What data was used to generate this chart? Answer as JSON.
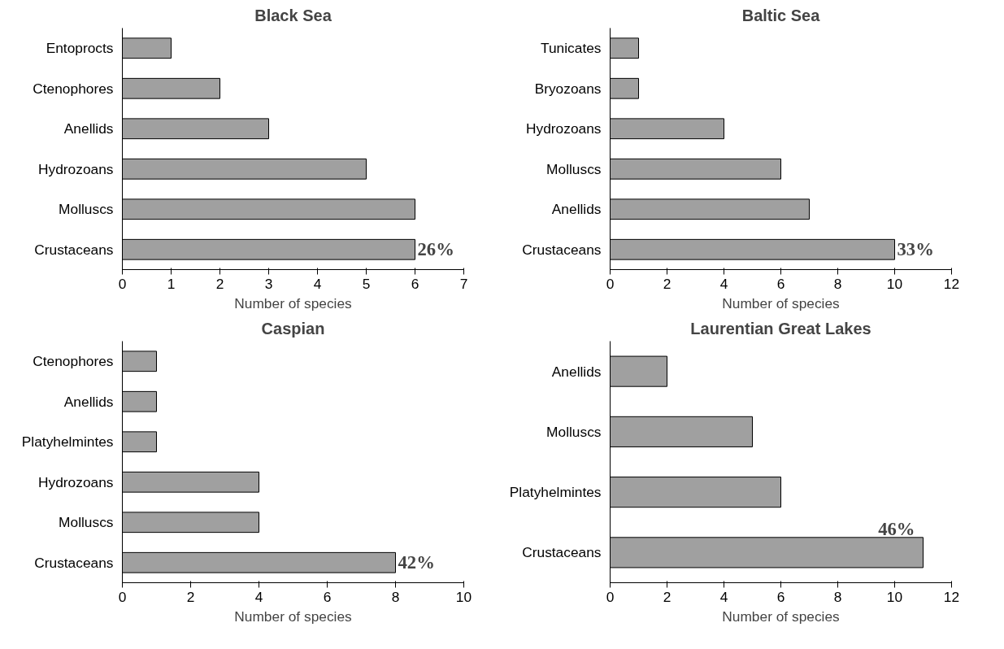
{
  "chart_data": [
    {
      "type": "bar",
      "orientation": "horizontal",
      "title": "Black Sea",
      "xlabel": "Number of species",
      "categories": [
        "Entoprocts",
        "Ctenophores",
        "Anellids",
        "Hydrozoans",
        "Molluscs",
        "Crustaceans"
      ],
      "values": [
        1,
        2,
        3,
        5,
        6,
        6
      ],
      "color": "#a0a0a0",
      "xlim": [
        0,
        7
      ],
      "xticks": [
        0,
        1,
        2,
        3,
        4,
        5,
        6,
        7
      ],
      "grid": false,
      "annotations": [
        {
          "text": "26%",
          "x": 6,
          "y": "Crustaceans"
        }
      ]
    },
    {
      "type": "bar",
      "orientation": "horizontal",
      "title": "Baltic Sea",
      "xlabel": "Number of species",
      "categories": [
        "Tunicates",
        "Bryozoans",
        "Hydrozoans",
        "Molluscs",
        "Anellids",
        "Crustaceans"
      ],
      "values": [
        1,
        1,
        4,
        6,
        7,
        10
      ],
      "color": "#a0a0a0",
      "xlim": [
        0,
        12
      ],
      "xticks": [
        0,
        2,
        4,
        6,
        8,
        10,
        12
      ],
      "grid": false,
      "annotations": [
        {
          "text": "33%",
          "x": 10,
          "y": "Crustaceans"
        }
      ]
    },
    {
      "type": "bar",
      "orientation": "horizontal",
      "title": "Caspian",
      "xlabel": "Number of species",
      "categories": [
        "Ctenophores",
        "Anellids",
        "Platyhelmintes",
        "Hydrozoans",
        "Molluscs",
        "Crustaceans"
      ],
      "values": [
        1,
        1,
        1,
        4,
        4,
        8
      ],
      "color": "#a0a0a0",
      "xlim": [
        0,
        10
      ],
      "xticks": [
        0,
        2,
        4,
        6,
        8,
        10
      ],
      "grid": false,
      "annotations": [
        {
          "text": "42%",
          "x": 8,
          "y": "Crustaceans"
        }
      ]
    },
    {
      "type": "bar",
      "orientation": "horizontal",
      "title": "Laurentian Great Lakes",
      "xlabel": "Number of species",
      "categories": [
        "Anellids",
        "Molluscs",
        "Platyhelmintes",
        "Crustaceans"
      ],
      "values": [
        2,
        5,
        6,
        11
      ],
      "color": "#a0a0a0",
      "xlim": [
        0,
        12
      ],
      "xticks": [
        0,
        2,
        4,
        6,
        8,
        10,
        12
      ],
      "grid": false,
      "annotations": [
        {
          "text": "46%",
          "x": 11,
          "y": "Crustaceans"
        }
      ]
    }
  ]
}
